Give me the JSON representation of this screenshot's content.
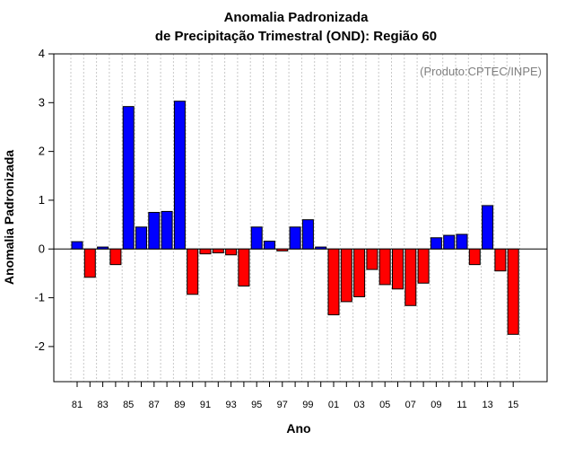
{
  "chart_data": {
    "type": "bar",
    "title": "Anomalia Padronizada",
    "subtitle": "de Precipitação Trimestral (OND): Região 60",
    "xlabel": "Ano",
    "ylabel": "Anomalia Padronizada",
    "annotation": "(Produto:CPTEC/INPE)",
    "ylim": [
      -2.72,
      4.0
    ],
    "yticks": [
      -2,
      -1,
      0,
      1,
      2,
      3,
      4
    ],
    "ytick_labels": [
      "-2",
      "-1",
      "0",
      "1",
      "2",
      "3",
      "4"
    ],
    "categories": [
      "81",
      "82",
      "83",
      "84",
      "85",
      "86",
      "87",
      "88",
      "89",
      "90",
      "91",
      "92",
      "93",
      "94",
      "95",
      "96",
      "97",
      "98",
      "99",
      "00",
      "01",
      "02",
      "03",
      "04",
      "05",
      "06",
      "07",
      "08",
      "09",
      "10",
      "11",
      "12",
      "13",
      "14",
      "15"
    ],
    "x_tick_labels": [
      "81",
      "83",
      "85",
      "87",
      "89",
      "91",
      "93",
      "95",
      "97",
      "99",
      "01",
      "03",
      "05",
      "07",
      "09",
      "11",
      "13",
      "15"
    ],
    "values": [
      0.15,
      -0.58,
      0.04,
      -0.32,
      2.92,
      0.45,
      0.75,
      0.77,
      3.03,
      -0.93,
      -0.1,
      -0.08,
      -0.12,
      -0.76,
      0.45,
      0.16,
      -0.04,
      0.45,
      0.6,
      0.04,
      -1.35,
      -1.08,
      -0.98,
      -0.42,
      -0.73,
      -0.82,
      -1.16,
      -0.7,
      0.23,
      0.28,
      0.3,
      -0.32,
      0.89,
      -0.45,
      -1.75
    ],
    "colors": {
      "positive": "#0000ff",
      "negative": "#ff0000",
      "grid": "#c8c8c8",
      "annotation": "#7f7f7f"
    },
    "grid": true
  }
}
